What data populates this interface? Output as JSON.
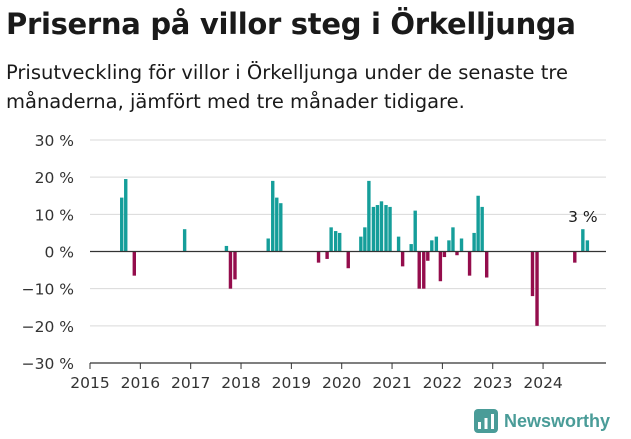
{
  "header": {
    "title": "Priserna på villor steg i Örkelljunga",
    "subtitle": "Prisutveckling för villor i Örkelljunga under de senaste tre månaderna, jämfört med tre månader tidigare."
  },
  "brand": {
    "name": "Newsworthy"
  },
  "colors": {
    "positive": "#159e9a",
    "negative": "#940d4c",
    "grid": "#d9d9d9",
    "axis": "#333333",
    "brand": "#4a9c98"
  },
  "chart_data": {
    "type": "bar",
    "title": "Priserna på villor steg i Örkelljunga",
    "subtitle": "Prisutveckling för villor i Örkelljunga under de senaste tre månaderna, jämfört med tre månader tidigare.",
    "xlabel": "",
    "ylabel": "",
    "ylim": [
      -30,
      30
    ],
    "yticks": [
      30,
      20,
      10,
      0,
      -10,
      -20,
      -30
    ],
    "ytick_labels": [
      "30 %",
      "20 %",
      "10 %",
      "0 %",
      "−10 %",
      "−20 %",
      "−30 %"
    ],
    "xlim": [
      2015.0,
      2025.25
    ],
    "xtick_labels": [
      "2015",
      "2016",
      "2017",
      "2018",
      "2019",
      "2020",
      "2021",
      "2022",
      "2023",
      "2024"
    ],
    "grid": true,
    "annotation": {
      "label": "3 %",
      "x": 2024.79,
      "y": 3
    },
    "bars": [
      {
        "x": 2015.63,
        "value": 14.5
      },
      {
        "x": 2015.71,
        "value": 19.5
      },
      {
        "x": 2015.88,
        "value": -6.5
      },
      {
        "x": 2016.88,
        "value": 6
      },
      {
        "x": 2017.71,
        "value": 1.5
      },
      {
        "x": 2017.79,
        "value": -10
      },
      {
        "x": 2017.88,
        "value": -7.5
      },
      {
        "x": 2018.54,
        "value": 3.5
      },
      {
        "x": 2018.63,
        "value": 19
      },
      {
        "x": 2018.71,
        "value": 14.5
      },
      {
        "x": 2018.79,
        "value": 13
      },
      {
        "x": 2019.54,
        "value": -3
      },
      {
        "x": 2019.71,
        "value": -2
      },
      {
        "x": 2019.79,
        "value": 6.5
      },
      {
        "x": 2019.88,
        "value": 5.5
      },
      {
        "x": 2019.96,
        "value": 5
      },
      {
        "x": 2020.13,
        "value": -4.5
      },
      {
        "x": 2020.38,
        "value": 4
      },
      {
        "x": 2020.46,
        "value": 6.5
      },
      {
        "x": 2020.54,
        "value": 19
      },
      {
        "x": 2020.63,
        "value": 12
      },
      {
        "x": 2020.71,
        "value": 12.5
      },
      {
        "x": 2020.79,
        "value": 13.5
      },
      {
        "x": 2020.88,
        "value": 12.5
      },
      {
        "x": 2020.96,
        "value": 12
      },
      {
        "x": 2021.13,
        "value": 4
      },
      {
        "x": 2021.21,
        "value": -4
      },
      {
        "x": 2021.38,
        "value": 2
      },
      {
        "x": 2021.46,
        "value": 11
      },
      {
        "x": 2021.54,
        "value": -10
      },
      {
        "x": 2021.63,
        "value": -10
      },
      {
        "x": 2021.71,
        "value": -2.5
      },
      {
        "x": 2021.79,
        "value": 3
      },
      {
        "x": 2021.88,
        "value": 4
      },
      {
        "x": 2021.96,
        "value": -8
      },
      {
        "x": 2022.04,
        "value": -1.5
      },
      {
        "x": 2022.13,
        "value": 3
      },
      {
        "x": 2022.21,
        "value": 6.5
      },
      {
        "x": 2022.29,
        "value": -1
      },
      {
        "x": 2022.38,
        "value": 3.5
      },
      {
        "x": 2022.54,
        "value": -6.5
      },
      {
        "x": 2022.63,
        "value": 5
      },
      {
        "x": 2022.71,
        "value": 15
      },
      {
        "x": 2022.79,
        "value": 12
      },
      {
        "x": 2022.88,
        "value": -7
      },
      {
        "x": 2023.79,
        "value": -12
      },
      {
        "x": 2023.88,
        "value": -20
      },
      {
        "x": 2024.63,
        "value": -3
      },
      {
        "x": 2024.79,
        "value": 6
      },
      {
        "x": 2024.88,
        "value": 3
      }
    ]
  }
}
